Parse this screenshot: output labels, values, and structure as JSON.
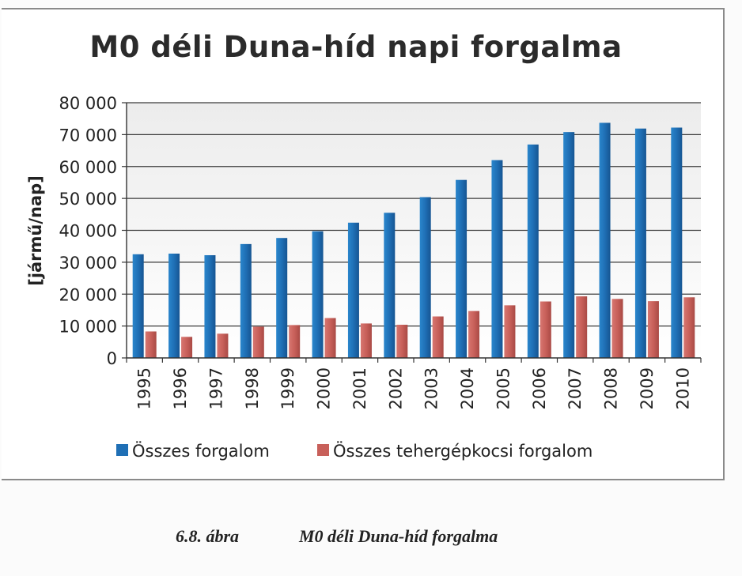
{
  "chart_data": {
    "type": "bar",
    "title": "M0 déli Duna-híd napi forgalma",
    "ylabel": "[jármű/nap]",
    "xlabel": "",
    "ylim": [
      0,
      80000
    ],
    "yticks": [
      "0",
      "10 000",
      "20 000",
      "30 000",
      "40 000",
      "50 000",
      "60 000",
      "70 000",
      "80 000"
    ],
    "categories": [
      "1995",
      "1996",
      "1997",
      "1998",
      "1999",
      "2000",
      "2001",
      "2002",
      "2003",
      "2004",
      "2005",
      "2006",
      "2007",
      "2008",
      "2009",
      "2010"
    ],
    "series": [
      {
        "name": "Összes forgalom",
        "color": "#1f6fb5",
        "values": [
          32500,
          32700,
          32200,
          35700,
          37600,
          39700,
          42400,
          45500,
          50400,
          55800,
          62000,
          66900,
          70800,
          73700,
          71900,
          72200
        ]
      },
      {
        "name": "Összes tehergépkocsi forgalom",
        "color": "#c8605a",
        "values": [
          8300,
          6600,
          7600,
          9800,
          10300,
          12500,
          10800,
          10400,
          13000,
          14700,
          16500,
          17700,
          19300,
          18500,
          17800,
          19000
        ]
      }
    ],
    "grid": true,
    "legend": "bottom"
  },
  "caption": {
    "number": "6.8. ábra",
    "text": "M0 déli Duna-híd forgalma"
  }
}
